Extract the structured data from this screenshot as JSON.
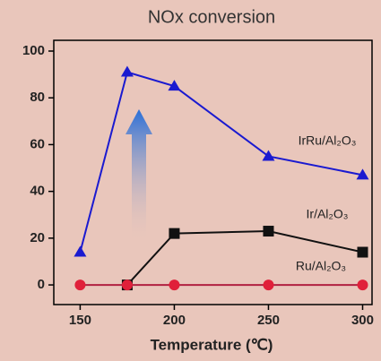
{
  "chart_data": {
    "type": "line",
    "title": "NOx conversion",
    "x_label": "Temperature (℃)",
    "x": [
      150,
      175,
      200,
      250,
      300
    ],
    "xlim": [
      136,
      305
    ],
    "xticks": [
      150,
      200,
      250,
      300
    ],
    "ylim": [
      -8.4,
      104.6
    ],
    "yticks": [
      0,
      20,
      40,
      60,
      80,
      100
    ],
    "series": [
      {
        "name": "IrRu/Al₂O₃",
        "color": "#1a1ad0",
        "marker": "triangle",
        "values": [
          14,
          91,
          85,
          55,
          47
        ]
      },
      {
        "name": "Ir/Al₂O₃",
        "color": "#111111",
        "marker": "square",
        "values": [
          null,
          0,
          22,
          23,
          14
        ]
      },
      {
        "name": "Ru/Al₂O₃",
        "color": "#e0203a",
        "line_color": "#b02040",
        "marker": "circle",
        "values": [
          0,
          0,
          0,
          0,
          0
        ]
      }
    ]
  }
}
